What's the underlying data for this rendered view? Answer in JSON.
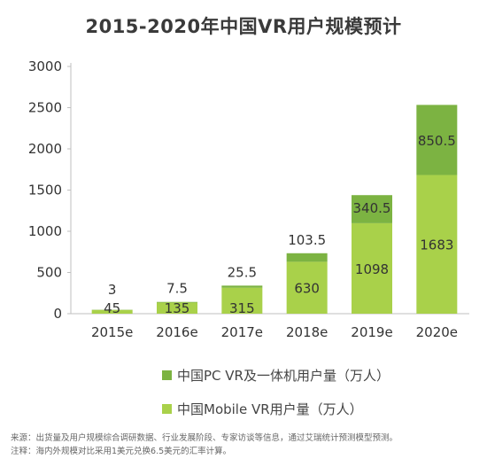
{
  "chart_data": {
    "type": "bar",
    "stacked": true,
    "title": "2015-2020年中国VR用户规模预计",
    "categories": [
      "2015e",
      "2016e",
      "2017e",
      "2018e",
      "2019e",
      "2020e"
    ],
    "series": [
      {
        "name": "中国Mobile VR用户量（万人）",
        "values": [
          45,
          135,
          315,
          630,
          1098,
          1683
        ],
        "color": "#a9d14a",
        "labels": [
          "45",
          "135",
          "315",
          "630",
          "1098",
          "1683"
        ]
      },
      {
        "name": "中国PC VR及一体机用户量（万人）",
        "values": [
          3,
          7.5,
          25.5,
          103.5,
          340.5,
          850.5
        ],
        "color": "#7cb342",
        "labels": [
          "3",
          "7.5",
          "25.5",
          "103.5",
          "340.5",
          "850.5"
        ]
      }
    ],
    "y_ticks": [
      "0",
      "500",
      "1000",
      "1500",
      "2000",
      "2500",
      "3000"
    ],
    "ylim": [
      0,
      3000
    ],
    "grid": false,
    "legend_position": "bottom"
  },
  "legend": {
    "pc": {
      "label": "中国PC VR及一体机用户量（万人）",
      "color": "#7cb342"
    },
    "mobile": {
      "label": "中国Mobile VR用户量（万人）",
      "color": "#a9d14a"
    }
  },
  "notes": {
    "source": "来源：出货量及用户规模综合调研数据、行业发展阶段、专家访谈等信息，通过艾瑞统计预测模型预测。",
    "remark": "注释：海内外规模对比采用1美元兑换6.5美元的汇率计算。"
  }
}
